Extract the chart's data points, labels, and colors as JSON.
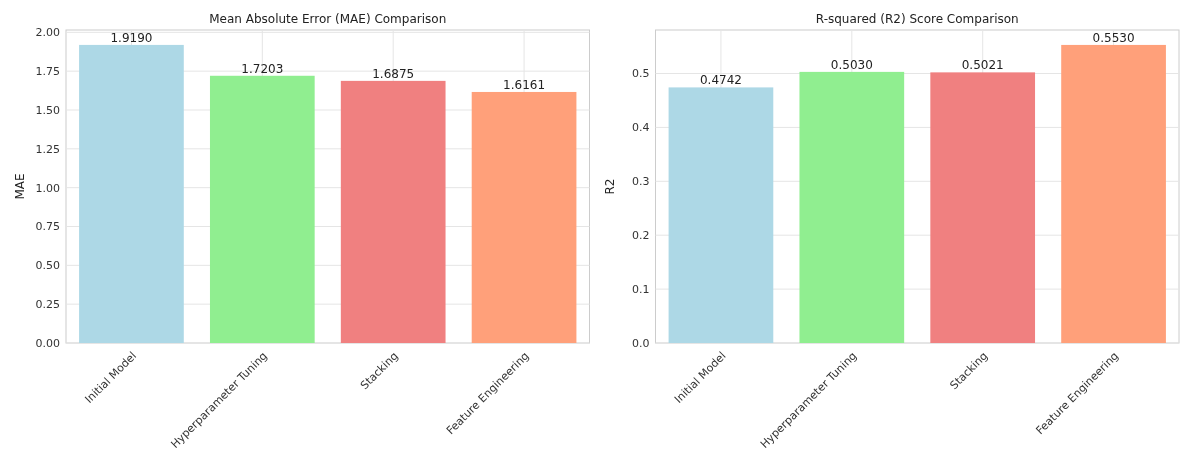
{
  "chart_data": [
    {
      "type": "bar",
      "title": "Mean Absolute Error (MAE) Comparison",
      "ylabel": "MAE",
      "categories": [
        "Initial Model",
        "Hyperparameter Tuning",
        "Stacking",
        "Feature Engineering"
      ],
      "values": [
        1.919,
        1.7203,
        1.6875,
        1.6161
      ],
      "value_labels": [
        "1.9190",
        "1.7203",
        "1.6875",
        "1.6161"
      ],
      "colors": [
        "#add8e6",
        "#90ee90",
        "#f08080",
        "#ffa07a"
      ],
      "ylim": [
        0,
        2.015
      ],
      "yticks": [
        {
          "value": 0,
          "label": "0.00"
        },
        {
          "value": 0.25,
          "label": "0.25"
        },
        {
          "value": 0.5,
          "label": "0.50"
        },
        {
          "value": 0.75,
          "label": "0.75"
        },
        {
          "value": 1,
          "label": "1.00"
        },
        {
          "value": 1.25,
          "label": "1.25"
        },
        {
          "value": 1.5,
          "label": "1.50"
        },
        {
          "value": 1.75,
          "label": "1.75"
        },
        {
          "value": 2,
          "label": "2.00"
        }
      ],
      "grid": true
    },
    {
      "type": "bar",
      "title": "R-squared (R2) Score Comparison",
      "ylabel": "R2",
      "categories": [
        "Initial Model",
        "Hyperparameter Tuning",
        "Stacking",
        "Feature Engineering"
      ],
      "values": [
        0.4742,
        0.503,
        0.5021,
        0.553
      ],
      "value_labels": [
        "0.4742",
        "0.5030",
        "0.5021",
        "0.5530"
      ],
      "colors": [
        "#add8e6",
        "#90ee90",
        "#f08080",
        "#ffa07a"
      ],
      "ylim": [
        0,
        0.5807
      ],
      "yticks": [
        {
          "value": 0,
          "label": "0.0"
        },
        {
          "value": 0.1,
          "label": "0.1"
        },
        {
          "value": 0.2,
          "label": "0.2"
        },
        {
          "value": 0.3,
          "label": "0.3"
        },
        {
          "value": 0.4,
          "label": "0.4"
        },
        {
          "value": 0.5,
          "label": "0.5"
        }
      ],
      "grid": true
    }
  ]
}
